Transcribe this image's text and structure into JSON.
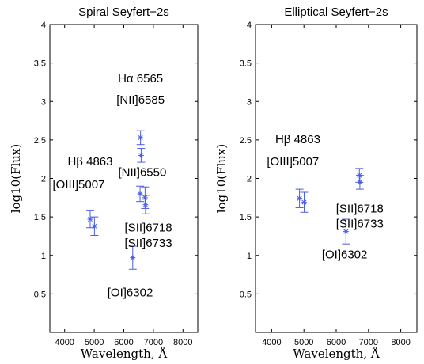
{
  "chart_data": [
    {
      "type": "scatter",
      "title": "Spiral Seyfert−2s",
      "xlabel": "Wavelength, Å",
      "ylabel": "log10(Flux)",
      "xlim": [
        3500,
        8500
      ],
      "ylim": [
        0,
        4
      ],
      "xticks": [
        4000,
        5000,
        6000,
        7000,
        8000
      ],
      "yticks": [
        0.5,
        1,
        1.5,
        2,
        2.5,
        3,
        3.5,
        4
      ],
      "marker_color": "#4a5de8",
      "points": [
        {
          "x": 4863,
          "y": 1.47,
          "err": 0.11
        },
        {
          "x": 5007,
          "y": 1.38,
          "err": 0.12
        },
        {
          "x": 6302,
          "y": 0.97,
          "err": 0.15
        },
        {
          "x": 6550,
          "y": 1.8,
          "err": 0.1
        },
        {
          "x": 6565,
          "y": 2.53,
          "err": 0.09
        },
        {
          "x": 6585,
          "y": 2.3,
          "err": 0.09
        },
        {
          "x": 6718,
          "y": 1.75,
          "err": 0.14
        },
        {
          "x": 6733,
          "y": 1.66,
          "err": 0.12
        }
      ],
      "annotations": [
        {
          "text": "Hα 6565",
          "x": 6565,
          "y": 3.25
        },
        {
          "text": "[NII]6585",
          "x": 6565,
          "y": 2.97
        },
        {
          "text": "Hβ 4863",
          "x": 4863,
          "y": 2.17
        },
        {
          "text": "[NII]6550",
          "x": 6625,
          "y": 2.03
        },
        {
          "text": "[OIII]5007",
          "x": 4475,
          "y": 1.87
        },
        {
          "text": "[SII]6718",
          "x": 6830,
          "y": 1.31
        },
        {
          "text": "[SII]6733",
          "x": 6830,
          "y": 1.11
        },
        {
          "text": "[OI]6302",
          "x": 6215,
          "y": 0.47
        }
      ]
    },
    {
      "type": "scatter",
      "title": "Elliptical Seyfert−2s",
      "xlabel": "Wavelength, Å",
      "ylabel": "log10(Flux)",
      "xlim": [
        3500,
        8500
      ],
      "ylim": [
        0,
        4
      ],
      "xticks": [
        4000,
        5000,
        6000,
        7000,
        8000
      ],
      "yticks": [
        0.5,
        1,
        1.5,
        2,
        2.5,
        3,
        3.5,
        4
      ],
      "marker_color": "#4a5de8",
      "points": [
        {
          "x": 4863,
          "y": 1.74,
          "err": 0.12
        },
        {
          "x": 5007,
          "y": 1.69,
          "err": 0.13
        },
        {
          "x": 6302,
          "y": 1.31,
          "err": 0.16
        },
        {
          "x": 6718,
          "y": 2.04,
          "err": 0.09
        },
        {
          "x": 6733,
          "y": 1.95,
          "err": 0.09
        }
      ],
      "annotations": [
        {
          "text": "Hβ 4863",
          "x": 4810,
          "y": 2.46
        },
        {
          "text": "[OIII]5007",
          "x": 4660,
          "y": 2.17
        },
        {
          "text": "[SII]6718",
          "x": 6730,
          "y": 1.56
        },
        {
          "text": "[SII]6733",
          "x": 6730,
          "y": 1.36
        },
        {
          "text": "[OI]6302",
          "x": 6260,
          "y": 0.96
        }
      ]
    }
  ]
}
